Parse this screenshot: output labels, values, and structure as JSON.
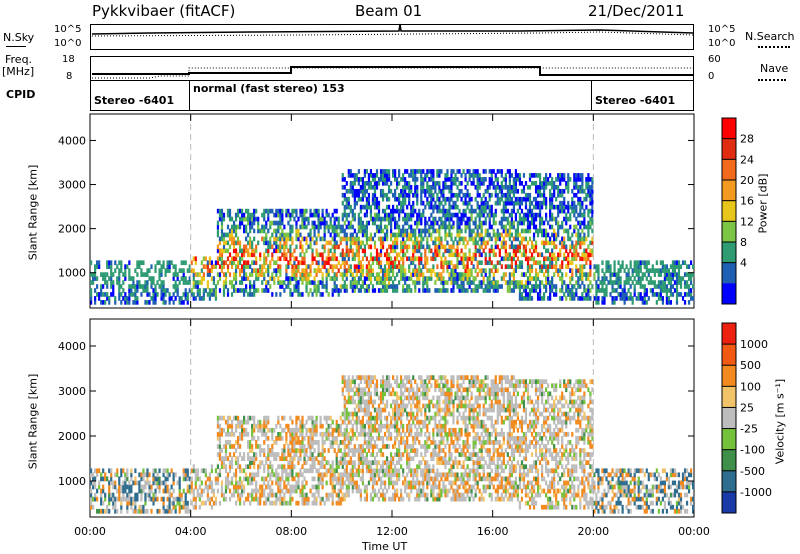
{
  "header": {
    "radar": "Pykkvibaer (fitACF)",
    "beam": "Beam 01",
    "date": "21/Dec/2011"
  },
  "status_panels": {
    "nsky_label": "N.Sky",
    "nsky_ticks": [
      "10^5",
      "10^0"
    ],
    "nsearch_label": "N.Search",
    "nsearch_ticks": [
      "10^5",
      "10^0"
    ],
    "freq_label": "Freq.",
    "freq_unit": "[MHz]",
    "freq_ticks": [
      "18",
      "8"
    ],
    "nave_label": "Nave",
    "nave_ticks": [
      "60",
      "0"
    ],
    "cpid_label": "CPID",
    "cpid_segments": [
      "Stereo -6401",
      "normal (fast stereo) 153",
      "Stereo -6401"
    ]
  },
  "chart_data": [
    {
      "type": "heatmap",
      "name": "power-panel",
      "ylabel": "Slant Range [km]",
      "yticks": [
        1000,
        2000,
        3000,
        4000
      ],
      "ylim": [
        200,
        4600
      ],
      "colorbar_label": "Power [dB]",
      "colorbar_ticks": [
        "28",
        "24",
        "20",
        "16",
        "12",
        "8",
        "4"
      ],
      "colors": [
        "#0000ff",
        "#1e5fb4",
        "#2e9b72",
        "#7cc443",
        "#e8c51a",
        "#f59a20",
        "#f26a1b",
        "#e02d12",
        "#ff0000"
      ]
    },
    {
      "type": "heatmap",
      "name": "velocity-panel",
      "ylabel": "Slant Range [km]",
      "yticks": [
        1000,
        2000,
        3000,
        4000
      ],
      "ylim": [
        200,
        4600
      ],
      "colorbar_label": "Velocity [m s⁻¹]",
      "colorbar_ticks": [
        "1000",
        "500",
        "100",
        "25",
        "-25",
        "-100",
        "-500",
        "-1000"
      ],
      "colors": [
        "#1a3aa8",
        "#2e6d8f",
        "#3e8f4a",
        "#74c23a",
        "#bdbdbd",
        "#f2c46a",
        "#f28a1f",
        "#f25a14",
        "#ee2010"
      ]
    }
  ],
  "time_axis": {
    "label": "Time UT",
    "ticks": [
      "00:00",
      "04:00",
      "08:00",
      "12:00",
      "16:00",
      "20:00",
      "00:00"
    ]
  }
}
